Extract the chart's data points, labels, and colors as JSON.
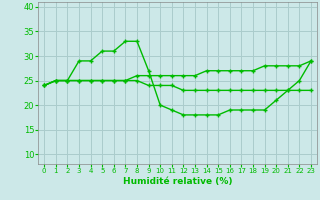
{
  "xlabel": "Humidité relative (%)",
  "background_color": "#cce8e8",
  "grid_color": "#aacccc",
  "line_color": "#00bb00",
  "xlim": [
    -0.5,
    23.5
  ],
  "ylim": [
    8,
    41
  ],
  "yticks": [
    10,
    15,
    20,
    25,
    30,
    35,
    40
  ],
  "xticks": [
    0,
    1,
    2,
    3,
    4,
    5,
    6,
    7,
    8,
    9,
    10,
    11,
    12,
    13,
    14,
    15,
    16,
    17,
    18,
    19,
    20,
    21,
    22,
    23
  ],
  "line1_x": [
    0,
    1,
    2,
    3,
    4,
    5,
    6,
    7,
    8,
    9,
    10,
    11,
    12,
    13,
    14,
    15,
    16,
    17,
    18,
    19,
    20,
    21,
    22,
    23
  ],
  "line1_y": [
    24,
    25,
    25,
    25,
    25,
    25,
    25,
    25,
    25,
    24,
    24,
    24,
    23,
    23,
    23,
    23,
    23,
    23,
    23,
    23,
    23,
    23,
    23,
    23
  ],
  "line2_x": [
    0,
    1,
    2,
    3,
    4,
    5,
    6,
    7,
    8,
    9,
    10,
    11,
    12,
    13,
    14,
    15,
    16,
    17,
    18,
    19,
    20,
    21,
    22,
    23
  ],
  "line2_y": [
    24,
    25,
    25,
    29,
    29,
    31,
    31,
    33,
    33,
    27,
    20,
    19,
    18,
    18,
    18,
    18,
    19,
    19,
    19,
    19,
    21,
    23,
    25,
    29
  ],
  "line3_x": [
    0,
    1,
    2,
    3,
    4,
    5,
    6,
    7,
    8,
    9,
    10,
    11,
    12,
    13,
    14,
    15,
    16,
    17,
    18,
    19,
    20,
    21,
    22,
    23
  ],
  "line3_y": [
    24,
    25,
    25,
    25,
    25,
    25,
    25,
    25,
    26,
    26,
    26,
    26,
    26,
    26,
    27,
    27,
    27,
    27,
    27,
    28,
    28,
    28,
    28,
    29
  ]
}
